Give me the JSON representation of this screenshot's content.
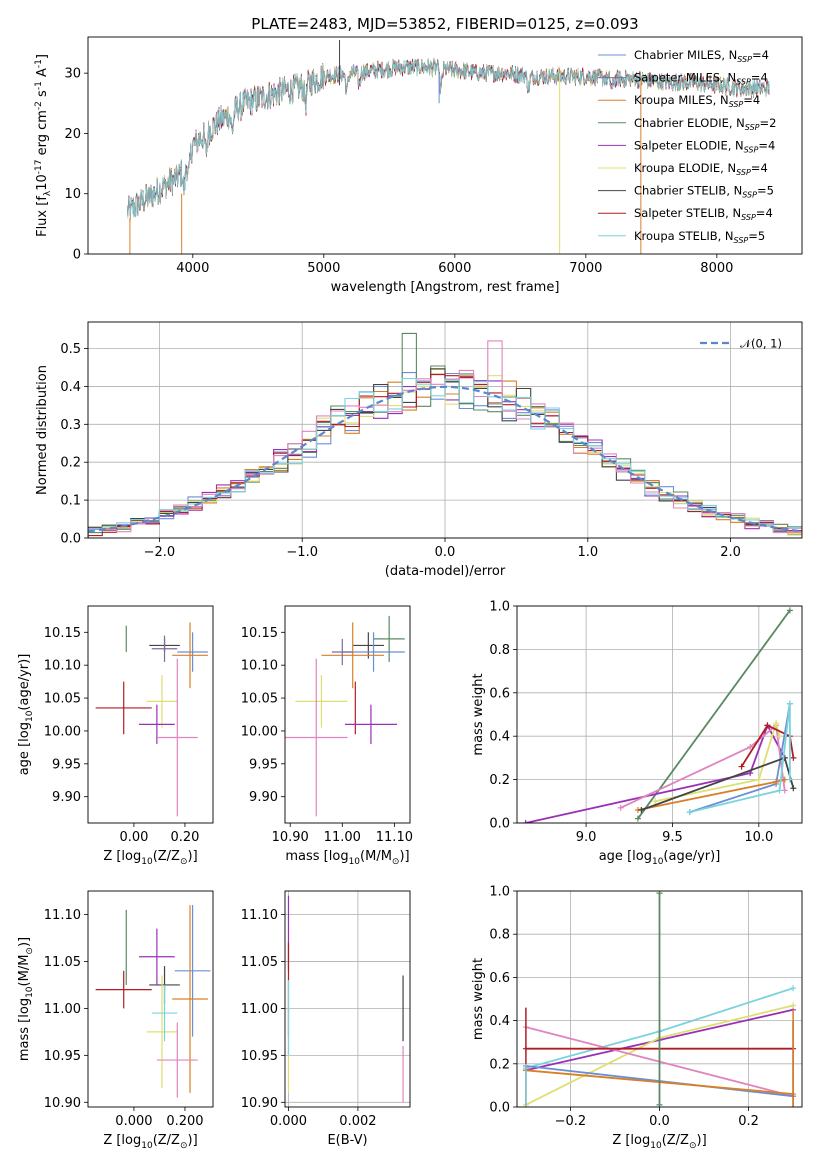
{
  "figure_title": "PLATE=2483, MJD=53852, FIBERID=0125, z=0.093",
  "series": [
    {
      "name": "Chabrier MILES",
      "nssp": "4",
      "color": "#6b8fd6"
    },
    {
      "name": "Salpeter MILES",
      "nssp": "4",
      "color": "#7e6b9e"
    },
    {
      "name": "Kroupa MILES",
      "nssp": "4",
      "color": "#d97f26"
    },
    {
      "name": "Chabrier ELODIE",
      "nssp": "2",
      "color": "#5a8a64"
    },
    {
      "name": "Salpeter ELODIE",
      "nssp": "4",
      "color": "#9b30b8"
    },
    {
      "name": "Kroupa ELODIE",
      "nssp": "4",
      "color": "#dde070"
    },
    {
      "name": "Chabrier STELIB",
      "nssp": "5",
      "color": "#444444"
    },
    {
      "name": "Salpeter STELIB",
      "nssp": "4",
      "color": "#b01e24"
    },
    {
      "name": "Kroupa STELIB",
      "nssp": "5",
      "color": "#7ad3dc"
    }
  ],
  "extra_colors": {
    "pink": "#e084bf"
  },
  "chart_data": [
    {
      "id": "spectrum",
      "type": "line",
      "xlabel": "wavelength [Angstrom, rest frame]",
      "ylabel": "Flux [f$_\\lambda$10$^{-17}$ erg cm$^{-2}$ s$^{-1}$ A$^{-1}$]",
      "xlim": [
        3200,
        8650
      ],
      "ylim": [
        0,
        36
      ],
      "xticks": [
        4000,
        5000,
        6000,
        7000,
        8000
      ],
      "yticks": [
        0,
        10,
        20,
        30
      ],
      "continuum": [
        [
          3500,
          7
        ],
        [
          3700,
          10
        ],
        [
          3900,
          13
        ],
        [
          4000,
          18
        ],
        [
          4200,
          22
        ],
        [
          4400,
          25
        ],
        [
          4600,
          26.5
        ],
        [
          4800,
          27.5
        ],
        [
          5000,
          29.5
        ],
        [
          5200,
          30
        ],
        [
          5400,
          30.5
        ],
        [
          5600,
          31
        ],
        [
          5800,
          31
        ],
        [
          6000,
          30.5
        ],
        [
          6200,
          30
        ],
        [
          6400,
          30
        ],
        [
          6600,
          29.5
        ],
        [
          6800,
          29.5
        ],
        [
          7000,
          29.5
        ],
        [
          7200,
          29
        ],
        [
          7400,
          29
        ],
        [
          7600,
          28.5
        ],
        [
          7800,
          28.5
        ],
        [
          8000,
          28
        ],
        [
          8200,
          27.5
        ],
        [
          8400,
          27.5
        ]
      ],
      "spikes": [
        {
          "x": 3520,
          "y0": 6,
          "y1": 0,
          "series": 2
        },
        {
          "x": 3915,
          "y0": 10,
          "y1": 0,
          "series": 2
        },
        {
          "x": 5120,
          "y0": 28,
          "y1": 35.5,
          "series": 6
        },
        {
          "x": 5880,
          "y0": 30,
          "y1": 25,
          "series": 0
        },
        {
          "x": 6800,
          "y0": 30,
          "y1": 0,
          "series": 5
        },
        {
          "x": 7420,
          "y0": 29,
          "y1": 0,
          "series": 2
        }
      ],
      "legend": "upper-right"
    },
    {
      "id": "residuals",
      "type": "step",
      "xlabel": "(data-model)/error",
      "ylabel": "Normed distribution",
      "xlim": [
        -2.5,
        2.5
      ],
      "ylim": [
        0,
        0.57
      ],
      "xticks": [
        -2,
        -1,
        0,
        1,
        2
      ],
      "yticks": [
        0.0,
        0.1,
        0.2,
        0.3,
        0.4,
        0.5
      ],
      "grid": true,
      "reference_curve": {
        "label": "$\\mathcal{N}(0, 1)$",
        "color": "#5b87d0",
        "mean": 0,
        "std": 1
      },
      "outlier_bars": [
        {
          "x0": -0.3,
          "x1": -0.2,
          "y": 0.54,
          "series": 3
        },
        {
          "x0": 0.3,
          "x1": 0.4,
          "y": 0.52,
          "series": 9
        }
      ],
      "legend": "upper-right"
    },
    {
      "id": "age_vs_Z",
      "type": "errorbar",
      "xlabel": "Z [log$_{10}$(Z/Z$_\\odot$)]",
      "ylabel": "age  [log$_{10}$(age/yr)]",
      "xlim": [
        -0.18,
        0.31
      ],
      "ylim": [
        9.86,
        10.19
      ],
      "xticks": [
        0.0,
        0.2
      ],
      "yticks": [
        9.9,
        9.95,
        10.0,
        10.05,
        10.1,
        10.15
      ],
      "points": [
        {
          "x": -0.03,
          "y": 10.14,
          "ex": 0.0,
          "ey": 0.02,
          "series": 3
        },
        {
          "x": 0.12,
          "y": 10.13,
          "ex": 0.06,
          "ey": 0.01,
          "series": 6
        },
        {
          "x": 0.23,
          "y": 10.12,
          "ex": 0.06,
          "ey": 0.03,
          "series": 0
        },
        {
          "x": 0.22,
          "y": 10.115,
          "ex": 0.07,
          "ey": 0.05,
          "series": 2
        },
        {
          "x": -0.04,
          "y": 10.035,
          "ex": 0.11,
          "ey": 0.04,
          "series": 7
        },
        {
          "x": 0.11,
          "y": 10.045,
          "ex": 0.06,
          "ey": 0.04,
          "series": 5
        },
        {
          "x": 0.09,
          "y": 10.01,
          "ex": 0.07,
          "ey": 0.03,
          "series": 4
        },
        {
          "x": 0.17,
          "y": 9.99,
          "ex": 0.08,
          "ey": 0.12,
          "series": 9
        },
        {
          "x": 0.12,
          "y": 10.125,
          "ex": 0.05,
          "ey": 0.02,
          "series": 1
        }
      ]
    },
    {
      "id": "age_vs_mass",
      "type": "errorbar",
      "xlabel": "mass [log$_{10}$(M/M$_\\odot$)]",
      "ylabel": "",
      "xlim": [
        10.89,
        11.13
      ],
      "ylim": [
        9.86,
        10.19
      ],
      "xticks": [
        10.9,
        11.0,
        11.1
      ],
      "yticks": [
        9.9,
        9.95,
        10.0,
        10.05,
        10.1,
        10.15
      ],
      "points": [
        {
          "x": 11.09,
          "y": 10.14,
          "ex": 0.03,
          "ey": 0.035,
          "series": 3
        },
        {
          "x": 11.05,
          "y": 10.13,
          "ex": 0.03,
          "ey": 0.02,
          "series": 6
        },
        {
          "x": 11.06,
          "y": 10.12,
          "ex": 0.06,
          "ey": 0.03,
          "series": 0
        },
        {
          "x": 11.02,
          "y": 10.115,
          "ex": 0.06,
          "ey": 0.05,
          "series": 2
        },
        {
          "x": 11.025,
          "y": 10.035,
          "ex": 0.0,
          "ey": 0.04,
          "series": 7
        },
        {
          "x": 10.96,
          "y": 10.045,
          "ex": 0.05,
          "ey": 0.04,
          "series": 5
        },
        {
          "x": 11.055,
          "y": 10.01,
          "ex": 0.05,
          "ey": 0.03,
          "series": 4
        },
        {
          "x": 10.95,
          "y": 9.99,
          "ex": 0.06,
          "ey": 0.12,
          "series": 9
        },
        {
          "x": 11.0,
          "y": 10.12,
          "ex": 0.02,
          "ey": 0.02,
          "series": 1
        }
      ]
    },
    {
      "id": "massweight_vs_age",
      "type": "line",
      "xlabel": "age  [log$_{10}$(age/yr)]",
      "ylabel": "mass weight",
      "xlim": [
        8.6,
        10.25
      ],
      "ylim": [
        0,
        1
      ],
      "xticks": [
        9.0,
        9.5,
        10.0
      ],
      "yticks": [
        0.0,
        0.2,
        0.4,
        0.6,
        0.8,
        1.0
      ],
      "grid": true,
      "lines": [
        {
          "series": 3,
          "x": [
            9.3,
            10.18
          ],
          "y": [
            0.02,
            0.98
          ]
        },
        {
          "series": 4,
          "x": [
            8.65,
            9.95,
            10.05,
            10.15
          ],
          "y": [
            0.0,
            0.23,
            0.45,
            0.3
          ]
        },
        {
          "series": 9,
          "x": [
            9.2,
            9.95,
            10.1,
            10.15
          ],
          "y": [
            0.07,
            0.35,
            0.45,
            0.15
          ]
        },
        {
          "series": 5,
          "x": [
            9.4,
            10.0,
            10.1,
            10.12
          ],
          "y": [
            0.1,
            0.2,
            0.46,
            0.4
          ]
        },
        {
          "series": 7,
          "x": [
            9.9,
            10.05,
            10.18,
            10.2
          ],
          "y": [
            0.26,
            0.45,
            0.4,
            0.3
          ]
        },
        {
          "series": 0,
          "x": [
            9.6,
            10.1,
            10.18
          ],
          "y": [
            0.05,
            0.18,
            0.55
          ]
        },
        {
          "series": 2,
          "x": [
            9.3,
            10.1,
            10.15
          ],
          "y": [
            0.06,
            0.19,
            0.2
          ]
        },
        {
          "series": 6,
          "x": [
            9.32,
            10.15,
            10.2
          ],
          "y": [
            0.06,
            0.3,
            0.16
          ]
        },
        {
          "series": 8,
          "x": [
            9.6,
            10.12,
            10.18,
            10.18
          ],
          "y": [
            0.05,
            0.15,
            0.55,
            0.2
          ]
        }
      ]
    },
    {
      "id": "mass_vs_Z",
      "type": "errorbar",
      "xlabel": "Z [log$_{10}$(Z/Z$_\\odot$)]",
      "ylabel": "mass [log$_{10}$(M/M$_\\odot$)]",
      "xlim": [
        -0.18,
        0.31
      ],
      "ylim": [
        10.895,
        11.125
      ],
      "xticks": [
        0.0,
        0.2
      ],
      "yticks": [
        10.9,
        10.95,
        11.0,
        11.05,
        11.1
      ],
      "points": [
        {
          "x": -0.03,
          "y": 11.065,
          "ex": 0.0,
          "ey": 0.04,
          "series": 3
        },
        {
          "x": 0.12,
          "y": 11.025,
          "ex": 0.06,
          "ey": 0.02,
          "series": 6
        },
        {
          "x": 0.23,
          "y": 11.04,
          "ex": 0.07,
          "ey": 0.07,
          "series": 0
        },
        {
          "x": 0.22,
          "y": 11.01,
          "ex": 0.07,
          "ey": 0.1,
          "series": 2
        },
        {
          "x": -0.04,
          "y": 11.02,
          "ex": 0.11,
          "ey": 0.02,
          "series": 7
        },
        {
          "x": 0.11,
          "y": 10.975,
          "ex": 0.06,
          "ey": 0.06,
          "series": 5
        },
        {
          "x": 0.09,
          "y": 11.055,
          "ex": 0.07,
          "ey": 0.03,
          "series": 4
        },
        {
          "x": 0.17,
          "y": 10.945,
          "ex": 0.08,
          "ey": 0.04,
          "series": 9
        },
        {
          "x": 0.12,
          "y": 10.995,
          "ex": 0.05,
          "ey": 0.03,
          "series": 8
        }
      ]
    },
    {
      "id": "mass_vs_EBV",
      "type": "errorbar",
      "xlabel": "E(B-V)",
      "ylabel": "",
      "xlim": [
        -0.0001,
        0.0035
      ],
      "ylim": [
        10.895,
        11.125
      ],
      "xticks": [
        0.0,
        0.002
      ],
      "yticks": [
        10.9,
        10.95,
        11.0,
        11.05,
        11.1
      ],
      "grid": true,
      "points": [
        {
          "x": 0.0,
          "y": 11.08,
          "ex": 0.0,
          "ey": 0.04,
          "series": 4
        },
        {
          "x": 0.0,
          "y": 11.02,
          "ex": 0.0,
          "ey": 0.05,
          "series": 7
        },
        {
          "x": 0.0,
          "y": 10.96,
          "ex": 0.0,
          "ey": 0.05,
          "series": 5
        },
        {
          "x": 0.0,
          "y": 10.99,
          "ex": 0.0,
          "ey": 0.04,
          "series": 8
        },
        {
          "x": 0.0033,
          "y": 11.0,
          "ex": 0.0,
          "ey": 0.035,
          "series": 6
        },
        {
          "x": 0.0033,
          "y": 10.93,
          "ex": 0.0,
          "ey": 0.03,
          "series": 9
        }
      ]
    },
    {
      "id": "massweight_vs_Z",
      "type": "line",
      "xlabel": "Z [log$_{10}$(Z/Z$_\\odot$)]",
      "ylabel": "mass weight",
      "xlim": [
        -0.32,
        0.32
      ],
      "ylim": [
        0,
        1
      ],
      "xticks": [
        -0.2,
        0.0,
        0.2
      ],
      "yticks": [
        0.0,
        0.2,
        0.4,
        0.6,
        0.8,
        1.0
      ],
      "grid": true,
      "lines": [
        {
          "series": 8,
          "x": [
            -0.3,
            0.0,
            0.3
          ],
          "y": [
            0.18,
            0.35,
            0.55
          ]
        },
        {
          "series": 4,
          "x": [
            -0.3,
            0.0,
            0.3
          ],
          "y": [
            0.17,
            0.31,
            0.45
          ]
        },
        {
          "series": 5,
          "x": [
            -0.3,
            0.0,
            0.3
          ],
          "y": [
            0.01,
            0.32,
            0.47
          ]
        },
        {
          "series": 9,
          "x": [
            -0.3,
            0.3
          ],
          "y": [
            0.37,
            0.05
          ]
        },
        {
          "series": 0,
          "x": [
            -0.3,
            0.3
          ],
          "y": [
            0.19,
            0.05
          ]
        },
        {
          "series": 2,
          "x": [
            -0.3,
            0.3
          ],
          "y": [
            0.17,
            0.06
          ]
        },
        {
          "series": 7,
          "x": [
            -0.3,
            0.3
          ],
          "y": [
            0.27,
            0.27
          ]
        },
        {
          "series": 3,
          "x": [
            0.0,
            0.0
          ],
          "y": [
            0.01,
            0.99
          ]
        }
      ],
      "vbars": [
        {
          "x": -0.3,
          "y0": 0.0,
          "y1": 0.46,
          "series": 7
        },
        {
          "x": -0.3,
          "y0": 0.0,
          "y1": 0.2,
          "series": 8
        },
        {
          "x": 0.3,
          "y0": 0.0,
          "y1": 0.4,
          "series": 7
        },
        {
          "x": 0.3,
          "y0": 0.0,
          "y1": 0.45,
          "series": 2
        }
      ]
    }
  ]
}
